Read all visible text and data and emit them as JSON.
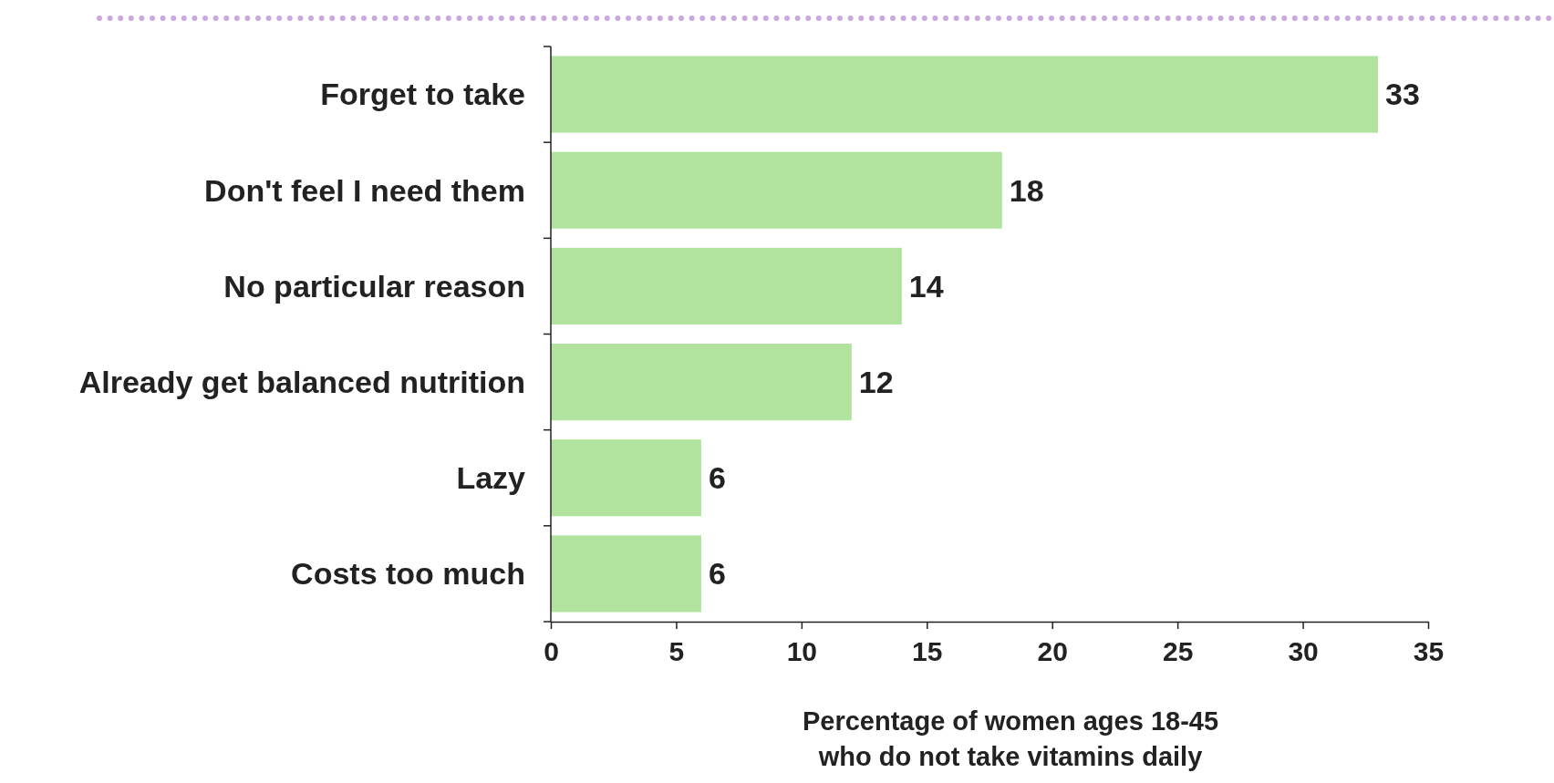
{
  "chart_data": {
    "type": "bar",
    "orientation": "horizontal",
    "categories": [
      "Forget to take",
      "Don't feel I need them",
      "No particular reason",
      "Already get balanced nutrition",
      "Lazy",
      "Costs too much"
    ],
    "values": [
      33,
      18,
      14,
      12,
      6,
      6
    ],
    "color": "#b1e39e",
    "xlim": [
      0,
      35
    ],
    "xticks": [
      0,
      5,
      10,
      15,
      20,
      25,
      30,
      35
    ],
    "data_labels": true,
    "xlabel": "Percentage of women ages 18-45\nwho do not take vitamins daily"
  }
}
